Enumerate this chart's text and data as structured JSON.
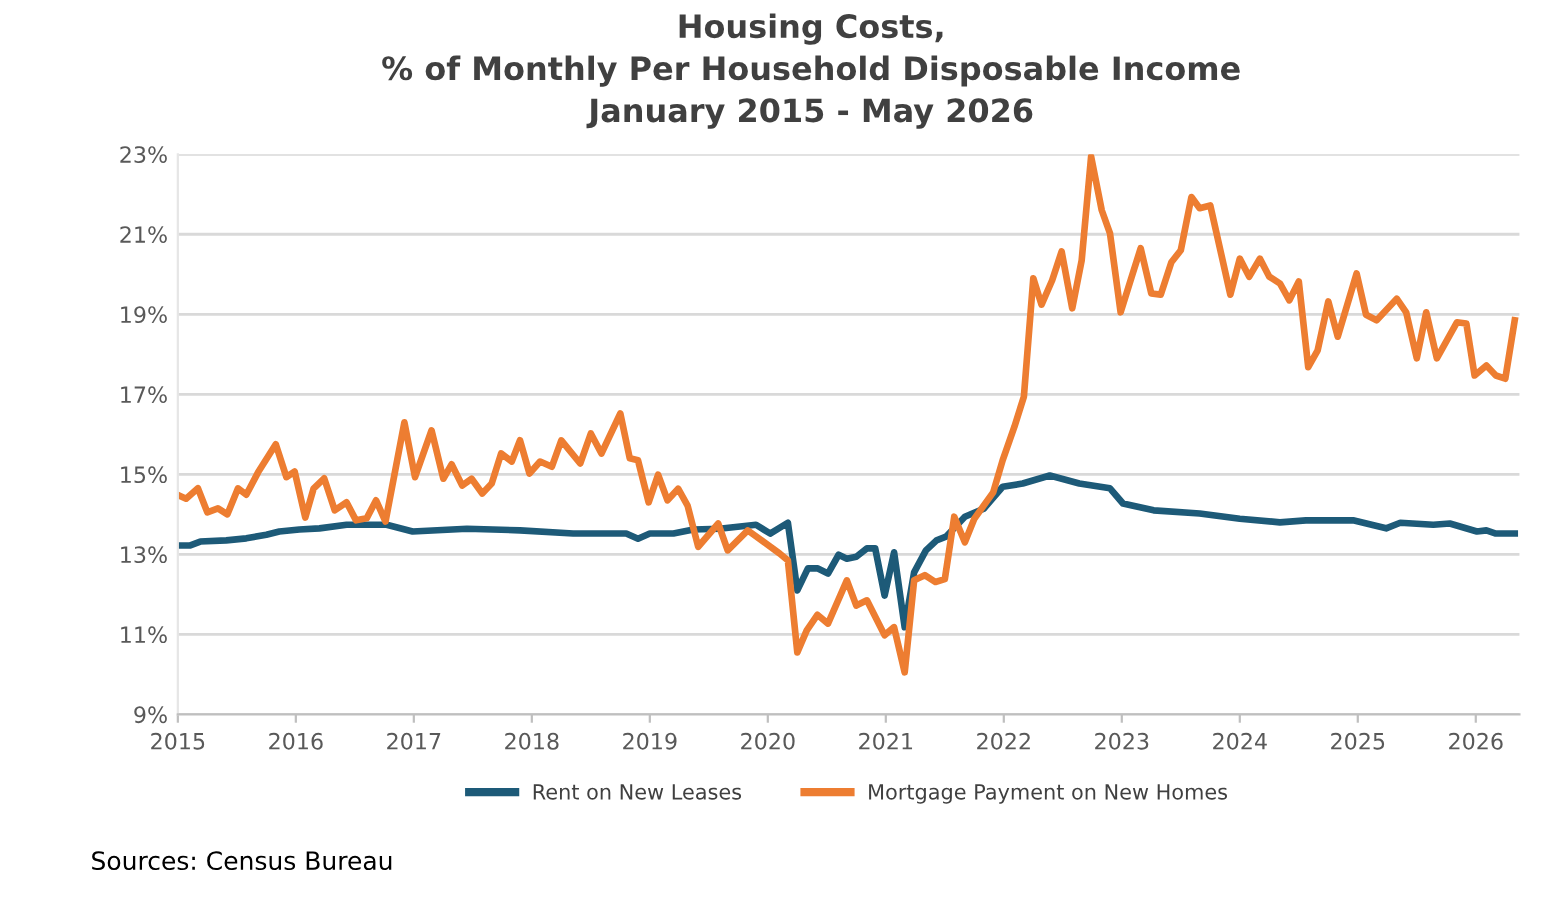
{
  "chart_data": {
    "type": "line",
    "title": "Housing Costs,\n% of Monthly Per Household Disposable Income\nJanuary 2015 - May 2026",
    "annotations": [
      "Sources: Census Bureau"
    ],
    "xlim": [
      2015,
      2026.37
    ],
    "xticks": [
      2015,
      2016,
      2017,
      2018,
      2019,
      2020,
      2021,
      2022,
      2023,
      2024,
      2025,
      2026
    ],
    "ylim": [
      9,
      23
    ],
    "yticks": [
      {
        "value": 9,
        "label": "9%"
      },
      {
        "value": 11,
        "label": "11%"
      },
      {
        "value": 13,
        "label": "13%"
      },
      {
        "value": 15,
        "label": "15%"
      },
      {
        "value": 17,
        "label": "17%"
      },
      {
        "value": 19,
        "label": "19%"
      },
      {
        "value": 21,
        "label": "21%"
      },
      {
        "value": 23,
        "label": "23%"
      }
    ],
    "grid": "y",
    "legend": "bottom",
    "marker": "none",
    "line_style": "solid",
    "series": [
      {
        "name": "Rent on New Leases",
        "color": "#1d5a78",
        "x": [
          2015.01,
          2015.1,
          2015.19,
          2015.41,
          2015.58,
          2015.75,
          2015.86,
          2016.03,
          2016.2,
          2016.43,
          2016.77,
          2016.99,
          2017.45,
          2017.9,
          2018.35,
          2018.8,
          2018.9,
          2019.0,
          2019.2,
          2019.37,
          2019.59,
          2019.9,
          2020.02,
          2020.17,
          2020.25,
          2020.34,
          2020.42,
          2020.51,
          2020.6,
          2020.67,
          2020.75,
          2020.84,
          2020.91,
          2020.99,
          2021.07,
          2021.16,
          2021.24,
          2021.34,
          2021.43,
          2021.51,
          2021.67,
          2021.83,
          2021.99,
          2022.16,
          2022.39,
          2022.64,
          2022.9,
          2023.01,
          2023.27,
          2023.66,
          2024.0,
          2024.34,
          2024.56,
          2024.96,
          2025.24,
          2025.36,
          2025.64,
          2025.78,
          2026.01,
          2026.09,
          2026.17,
          2026.33
        ],
        "values": [
          13.22,
          13.22,
          13.32,
          13.35,
          13.4,
          13.49,
          13.57,
          13.62,
          13.65,
          13.74,
          13.74,
          13.57,
          13.64,
          13.6,
          13.52,
          13.52,
          13.39,
          13.52,
          13.52,
          13.62,
          13.64,
          13.74,
          13.52,
          13.79,
          12.1,
          12.65,
          12.65,
          12.52,
          12.99,
          12.89,
          12.94,
          13.15,
          13.15,
          11.97,
          13.05,
          11.18,
          12.55,
          13.1,
          13.35,
          13.44,
          13.94,
          14.14,
          14.69,
          14.77,
          14.97,
          14.77,
          14.65,
          14.27,
          14.1,
          14.02,
          13.89,
          13.8,
          13.85,
          13.85,
          13.65,
          13.79,
          13.74,
          13.77,
          13.57,
          13.6,
          13.52,
          13.52
        ]
      },
      {
        "name": "Mortgage Payment on New Homes",
        "color": "#ed7d31",
        "x": [
          2015.01,
          2015.07,
          2015.17,
          2015.25,
          2015.34,
          2015.42,
          2015.51,
          2015.58,
          2015.68,
          2015.83,
          2015.92,
          2015.99,
          2016.08,
          2016.15,
          2016.24,
          2016.33,
          2016.43,
          2016.51,
          2016.6,
          2016.68,
          2016.76,
          2016.92,
          2017.01,
          2017.15,
          2017.25,
          2017.32,
          2017.41,
          2017.49,
          2017.58,
          2017.66,
          2017.74,
          2017.83,
          2017.9,
          2017.98,
          2018.07,
          2018.17,
          2018.25,
          2018.41,
          2018.5,
          2018.59,
          2018.75,
          2018.83,
          2018.9,
          2018.99,
          2019.07,
          2019.15,
          2019.24,
          2019.32,
          2019.41,
          2019.58,
          2019.66,
          2019.83,
          2020.1,
          2020.17,
          2020.25,
          2020.33,
          2020.42,
          2020.51,
          2020.67,
          2020.75,
          2020.84,
          2020.99,
          2021.07,
          2021.16,
          2021.24,
          2021.33,
          2021.42,
          2021.5,
          2021.58,
          2021.67,
          2021.75,
          2021.91,
          2021.99,
          2022.09,
          2022.17,
          2022.25,
          2022.32,
          2022.41,
          2022.49,
          2022.58,
          2022.66,
          2022.74,
          2022.83,
          2022.9,
          2022.99,
          2023.08,
          2023.16,
          2023.25,
          2023.33,
          2023.42,
          2023.5,
          2023.59,
          2023.66,
          2023.75,
          2023.92,
          2024.0,
          2024.08,
          2024.17,
          2024.25,
          2024.34,
          2024.42,
          2024.5,
          2024.58,
          2024.66,
          2024.75,
          2024.83,
          2024.99,
          2025.07,
          2025.16,
          2025.33,
          2025.41,
          2025.5,
          2025.58,
          2025.67,
          2025.84,
          2025.92,
          2025.99,
          2026.09,
          2026.17,
          2026.25,
          2026.33
        ],
        "values": [
          14.47,
          14.39,
          14.65,
          14.05,
          14.15,
          14.0,
          14.65,
          14.49,
          15.05,
          15.75,
          14.93,
          15.07,
          13.92,
          14.64,
          14.9,
          14.1,
          14.3,
          13.85,
          13.9,
          14.35,
          13.82,
          16.3,
          14.93,
          16.1,
          14.89,
          15.25,
          14.72,
          14.89,
          14.52,
          14.77,
          15.52,
          15.32,
          15.85,
          15.02,
          15.32,
          15.19,
          15.85,
          15.27,
          16.02,
          15.52,
          16.52,
          15.4,
          15.35,
          14.3,
          14.99,
          14.35,
          14.64,
          14.22,
          13.19,
          13.77,
          13.1,
          13.6,
          13.02,
          12.85,
          10.55,
          11.1,
          11.49,
          11.27,
          12.35,
          11.72,
          11.85,
          10.98,
          11.18,
          10.05,
          12.35,
          12.48,
          12.31,
          12.38,
          13.94,
          13.3,
          13.89,
          14.55,
          15.35,
          16.19,
          16.94,
          19.9,
          19.24,
          19.85,
          20.57,
          19.15,
          20.35,
          22.94,
          21.6,
          21.02,
          19.05,
          19.9,
          20.65,
          19.52,
          19.49,
          20.3,
          20.6,
          21.93,
          21.65,
          21.72,
          19.49,
          20.39,
          19.94,
          20.39,
          19.94,
          19.77,
          19.35,
          19.82,
          17.68,
          18.1,
          19.32,
          18.44,
          20.02,
          18.99,
          18.85,
          19.39,
          19.05,
          17.9,
          19.05,
          17.9,
          18.8,
          18.77,
          17.47,
          17.72,
          17.47,
          17.39,
          18.85
        ]
      }
    ]
  }
}
